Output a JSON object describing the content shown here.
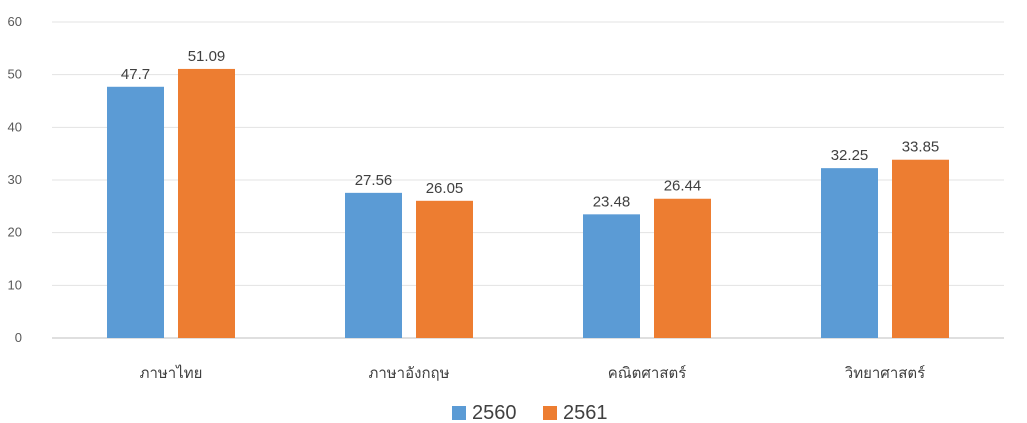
{
  "chart_data": {
    "type": "bar",
    "title": "",
    "xlabel": "",
    "ylabel": "",
    "ylim": [
      0,
      60
    ],
    "yticks": [
      0,
      10,
      20,
      30,
      40,
      50,
      60
    ],
    "grid": true,
    "legend_position": "bottom",
    "categories": [
      "ภาษาไทย",
      "ภาษาอังกฤษ",
      "คณิตศาสตร์",
      "วิทยาศาสตร์"
    ],
    "series": [
      {
        "name": "2560",
        "color": "#5B9BD5",
        "values": [
          47.7,
          27.56,
          23.48,
          32.25
        ],
        "labels": [
          "47.7",
          "27.56",
          "23.48",
          "32.25"
        ]
      },
      {
        "name": "2561",
        "color": "#ED7D31",
        "values": [
          51.09,
          26.05,
          26.44,
          33.85
        ],
        "labels": [
          "51.09",
          "26.05",
          "26.44",
          "33.85"
        ]
      }
    ]
  }
}
